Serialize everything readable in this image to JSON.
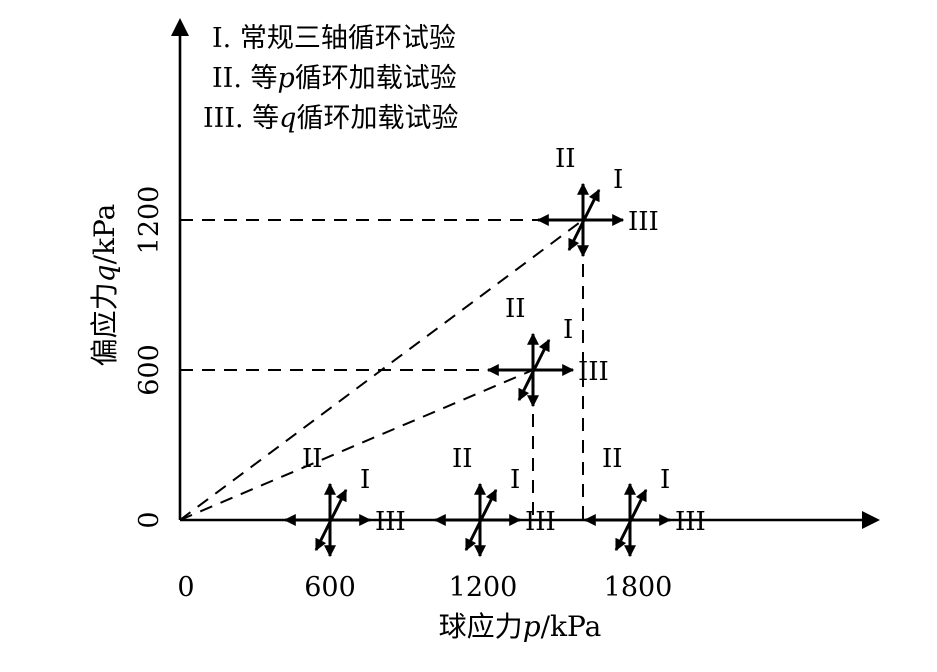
{
  "legend": [
    {
      "numeral": "I",
      "pre": ". 常规三轴循环试验",
      "var": "",
      "post": ""
    },
    {
      "numeral": "II",
      "pre": ". 等",
      "var": "p",
      "post": "循环加载试验"
    },
    {
      "numeral": "III",
      "pre": ". 等",
      "var": "q",
      "post": "循环加载试验"
    }
  ],
  "axes": {
    "x_label_pre": "球应力",
    "x_label_var": "p",
    "x_label_unit": "/kPa",
    "y_label_pre": "偏应力",
    "y_label_var": "q",
    "y_label_unit": "/kPa",
    "x_origin_tick": "0",
    "y_origin_tick": "0",
    "x_ticks": [
      "600",
      "1200",
      "1800"
    ],
    "y_ticks": [
      "600",
      "1200"
    ]
  },
  "path_labels": {
    "i": "I",
    "ii": "II",
    "iii": "III"
  },
  "chart_data": {
    "type": "stress-path-diagram",
    "x_axis": "球应力p/kPa",
    "y_axis": "偏应力q/kPa",
    "x_ticks": [
      0,
      600,
      1200,
      1800
    ],
    "y_ticks": [
      0,
      600,
      1200
    ],
    "loading_points": [
      {
        "p": 600,
        "q": 0
      },
      {
        "p": 1200,
        "q": 0
      },
      {
        "p": 1800,
        "q": 0
      },
      {
        "p": 1400,
        "q": 600
      },
      {
        "p": 1600,
        "q": 1200
      }
    ],
    "paths": {
      "I": "常规三轴循环试验",
      "II": "等p循环加载试验",
      "III": "等q循环加载试验"
    }
  }
}
